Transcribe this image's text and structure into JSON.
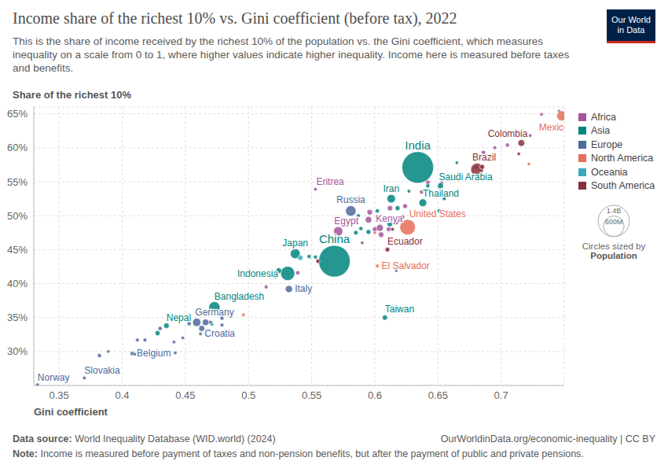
{
  "chart_data": {
    "type": "scatter",
    "title": "Income share of the richest 10% vs. Gini coefficient (before tax), 2022",
    "subtitle": "This is the share of income received by the richest 10% of the population vs. the Gini coefficient, which measures inequality on a scale from 0 to 1, where higher values indicate higher inequality. Income here is measured before taxes and benefits.",
    "x_label": "Gini coefficient",
    "y_label": "Share of the richest 10%",
    "xlim": [
      0.33,
      0.75
    ],
    "xticks": [
      0.35,
      0.4,
      0.45,
      0.5,
      0.55,
      0.6,
      0.65,
      0.7
    ],
    "ylim": [
      25,
      66
    ],
    "yticks": [
      {
        "value": 30,
        "label": "30%"
      },
      {
        "value": 35,
        "label": "35%"
      },
      {
        "value": 40,
        "label": "40%"
      },
      {
        "value": 45,
        "label": "45%"
      },
      {
        "value": 50,
        "label": "50%"
      },
      {
        "value": 55,
        "label": "55%"
      },
      {
        "value": 60,
        "label": "60%"
      },
      {
        "value": 65,
        "label": "65%"
      }
    ],
    "grid": true,
    "legend": "right",
    "size_legend": {
      "title": "Circles sized by",
      "variable": "Population",
      "values": [
        {
          "value": 1400,
          "label": "1.4B"
        },
        {
          "value": 600,
          "label": "600M"
        }
      ]
    },
    "series": [
      {
        "name": "Africa",
        "color": "#a2559c",
        "points": [
          {
            "x": 0.571,
            "y": 47.7,
            "size": 110,
            "label": "Egypt"
          },
          {
            "x": 0.604,
            "y": 48.2,
            "size": 54,
            "label": "Kenya"
          },
          {
            "x": 0.553,
            "y": 53.9,
            "size": 3.6,
            "label": "Eritrea"
          },
          {
            "x": 0.539,
            "y": 41.6,
            "size": 10
          },
          {
            "x": 0.514,
            "y": 39.5,
            "size": 8
          },
          {
            "x": 0.596,
            "y": 50.5,
            "size": 30
          },
          {
            "x": 0.6,
            "y": 48.0,
            "size": 20
          },
          {
            "x": 0.617,
            "y": 49.0,
            "size": 15
          },
          {
            "x": 0.622,
            "y": 49.8,
            "size": 12
          },
          {
            "x": 0.612,
            "y": 51.1,
            "size": 25
          },
          {
            "x": 0.624,
            "y": 51.4,
            "size": 18
          },
          {
            "x": 0.637,
            "y": 53.5,
            "size": 10
          },
          {
            "x": 0.642,
            "y": 54.9,
            "size": 14
          },
          {
            "x": 0.653,
            "y": 54.8,
            "size": 8
          },
          {
            "x": 0.667,
            "y": 56.1,
            "size": 20
          },
          {
            "x": 0.686,
            "y": 59.3,
            "size": 12
          },
          {
            "x": 0.695,
            "y": 60.0,
            "size": 6
          },
          {
            "x": 0.705,
            "y": 60.4,
            "size": 10
          },
          {
            "x": 0.723,
            "y": 61.8,
            "size": 5
          },
          {
            "x": 0.732,
            "y": 64.9,
            "size": 3
          },
          {
            "x": 0.746,
            "y": 65.4,
            "size": 2
          },
          {
            "x": 0.68,
            "y": 57.1,
            "size": 6
          },
          {
            "x": 0.611,
            "y": 48.0,
            "size": 17
          },
          {
            "x": 0.605,
            "y": 47.2,
            "size": 30
          },
          {
            "x": 0.59,
            "y": 46.0,
            "size": 5
          },
          {
            "x": 0.595,
            "y": 49.4,
            "size": 45
          }
        ]
      },
      {
        "name": "Asia",
        "color": "#00847e",
        "points": [
          {
            "x": 0.634,
            "y": 57.1,
            "size": 1420,
            "label": "India"
          },
          {
            "x": 0.568,
            "y": 43.3,
            "size": 1420,
            "label": "China"
          },
          {
            "x": 0.531,
            "y": 41.5,
            "size": 275,
            "label": "Indonesia"
          },
          {
            "x": 0.537,
            "y": 44.4,
            "size": 124,
            "label": "Japan"
          },
          {
            "x": 0.473,
            "y": 36.5,
            "size": 170,
            "label": "Bangladesh"
          },
          {
            "x": 0.435,
            "y": 33.8,
            "size": 30,
            "label": "Nepal"
          },
          {
            "x": 0.613,
            "y": 52.5,
            "size": 89,
            "label": "Iran"
          },
          {
            "x": 0.638,
            "y": 51.9,
            "size": 72,
            "label": "Thailand"
          },
          {
            "x": 0.652,
            "y": 54.4,
            "size": 36,
            "label": "Saudi Arabia"
          },
          {
            "x": 0.608,
            "y": 35.0,
            "size": 24,
            "label": "Taiwan"
          },
          {
            "x": 0.428,
            "y": 32.7,
            "size": 22
          },
          {
            "x": 0.524,
            "y": 41.9,
            "size": 30
          },
          {
            "x": 0.548,
            "y": 44.0,
            "size": 10
          },
          {
            "x": 0.553,
            "y": 43.9,
            "size": 8
          },
          {
            "x": 0.585,
            "y": 47.5,
            "size": 15
          },
          {
            "x": 0.589,
            "y": 48.1,
            "size": 10
          },
          {
            "x": 0.595,
            "y": 47.6,
            "size": 20
          },
          {
            "x": 0.612,
            "y": 48.8,
            "size": 35
          },
          {
            "x": 0.602,
            "y": 50.7,
            "size": 10
          },
          {
            "x": 0.618,
            "y": 51.1,
            "size": 20
          },
          {
            "x": 0.627,
            "y": 53.6,
            "size": 5
          },
          {
            "x": 0.642,
            "y": 54.4,
            "size": 10
          },
          {
            "x": 0.655,
            "y": 52.5,
            "size": 8
          },
          {
            "x": 0.651,
            "y": 50.7,
            "size": 12
          },
          {
            "x": 0.665,
            "y": 57.8,
            "size": 3
          },
          {
            "x": 0.521,
            "y": 41.0,
            "size": 5
          },
          {
            "x": 0.587,
            "y": 50.0,
            "size": 6
          }
        ]
      },
      {
        "name": "Europe",
        "color": "#4c6a9c",
        "points": [
          {
            "x": 0.581,
            "y": 50.7,
            "size": 144,
            "label": "Russia"
          },
          {
            "x": 0.532,
            "y": 39.2,
            "size": 59,
            "label": "Italy"
          },
          {
            "x": 0.459,
            "y": 34.3,
            "size": 84,
            "label": "Germany"
          },
          {
            "x": 0.462,
            "y": 32.6,
            "size": 4,
            "label": "Croatia"
          },
          {
            "x": 0.408,
            "y": 29.7,
            "size": 12,
            "label": "Belgium"
          },
          {
            "x": 0.37,
            "y": 26.1,
            "size": 5,
            "label": "Slovakia"
          },
          {
            "x": 0.333,
            "y": 25.1,
            "size": 5,
            "label": "Norway"
          },
          {
            "x": 0.382,
            "y": 29.4,
            "size": 10
          },
          {
            "x": 0.389,
            "y": 30.0,
            "size": 3
          },
          {
            "x": 0.412,
            "y": 31.7,
            "size": 5
          },
          {
            "x": 0.418,
            "y": 31.7,
            "size": 6
          },
          {
            "x": 0.43,
            "y": 33.4,
            "size": 10
          },
          {
            "x": 0.441,
            "y": 31.4,
            "size": 4
          },
          {
            "x": 0.448,
            "y": 32.0,
            "size": 3
          },
          {
            "x": 0.453,
            "y": 34.1,
            "size": 10
          },
          {
            "x": 0.466,
            "y": 34.3,
            "size": 45
          },
          {
            "x": 0.47,
            "y": 34.3,
            "size": 10
          },
          {
            "x": 0.479,
            "y": 33.9,
            "size": 7
          },
          {
            "x": 0.479,
            "y": 34.9,
            "size": 9
          },
          {
            "x": 0.442,
            "y": 29.8,
            "size": 4
          },
          {
            "x": 0.463,
            "y": 33.4,
            "size": 38
          },
          {
            "x": 0.617,
            "y": 41.9,
            "size": 2
          },
          {
            "x": 0.41,
            "y": 29.6,
            "size": 3
          }
        ]
      },
      {
        "name": "North America",
        "color": "#e56e5a",
        "points": [
          {
            "x": 0.748,
            "y": 64.7,
            "size": 128,
            "label": "Mexico"
          },
          {
            "x": 0.626,
            "y": 48.3,
            "size": 335,
            "label": "United States"
          },
          {
            "x": 0.602,
            "y": 42.6,
            "size": 6,
            "label": "El Salvador"
          },
          {
            "x": 0.722,
            "y": 57.6,
            "size": 2
          },
          {
            "x": 0.496,
            "y": 35.4,
            "size": 4
          },
          {
            "x": 0.618,
            "y": 49.7,
            "size": 10
          },
          {
            "x": 0.6,
            "y": 47.5,
            "size": 3
          }
        ]
      },
      {
        "name": "Oceania",
        "color": "#38aaba",
        "points": [
          {
            "x": 0.541,
            "y": 43.8,
            "size": 26
          },
          {
            "x": 0.471,
            "y": 34.0,
            "size": 5
          }
        ]
      },
      {
        "name": "South America",
        "color": "#883039",
        "points": [
          {
            "x": 0.681,
            "y": 56.8,
            "size": 215,
            "label": "Brazil"
          },
          {
            "x": 0.716,
            "y": 60.7,
            "size": 52,
            "label": "Colombia"
          },
          {
            "x": 0.61,
            "y": 45.0,
            "size": 18,
            "label": "Ecuador"
          },
          {
            "x": 0.714,
            "y": 59.1,
            "size": 3
          },
          {
            "x": 0.685,
            "y": 57.2,
            "size": 20
          },
          {
            "x": 0.555,
            "y": 43.3,
            "size": 12
          },
          {
            "x": 0.614,
            "y": 48.0,
            "size": 5
          }
        ]
      }
    ],
    "source": {
      "label": "Data source:",
      "text": "World Inequality Database (WID.world) (2024)"
    },
    "url": "OurWorldinData.org/economic-inequality | CC BY",
    "note": {
      "label": "Note:",
      "text": "Income is measured before payment of taxes and non-pension benefits, but after the payment of public and private pensions."
    },
    "logo": [
      "Our World",
      "in Data"
    ]
  }
}
